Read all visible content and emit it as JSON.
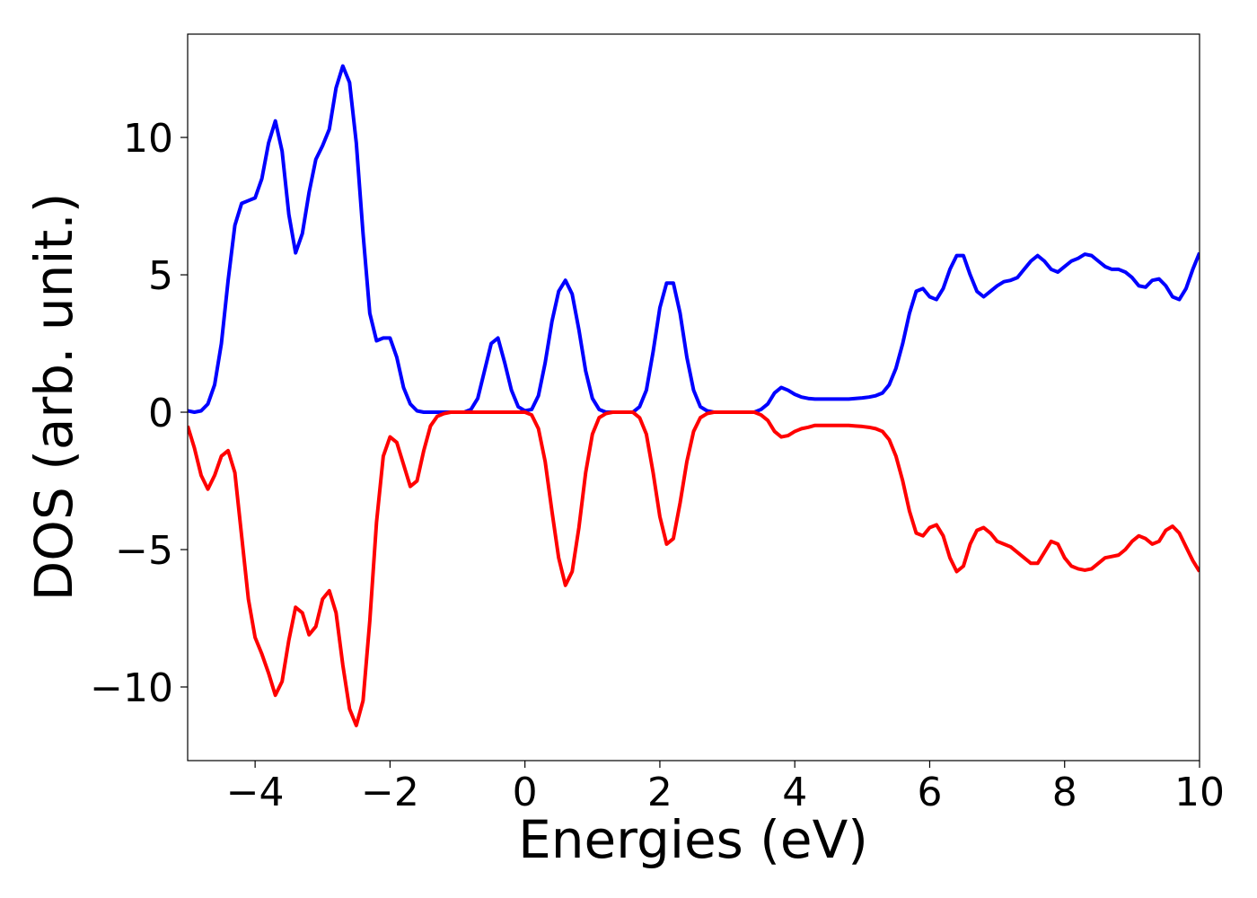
{
  "chart_data": {
    "type": "line",
    "xlabel": "Energies (eV)",
    "ylabel": "DOS (arb. unit.)",
    "x": [
      -5,
      -4.9,
      -4.8,
      -4.7,
      -4.6,
      -4.5,
      -4.4,
      -4.3,
      -4.2,
      -4.1,
      -4,
      -3.9,
      -3.8,
      -3.7,
      -3.6,
      -3.5,
      -3.4,
      -3.3,
      -3.2,
      -3.1,
      -3,
      -2.9,
      -2.8,
      -2.7,
      -2.6,
      -2.5,
      -2.4,
      -2.3,
      -2.2,
      -2.1,
      -2,
      -1.9,
      -1.8,
      -1.7,
      -1.6,
      -1.5,
      -1.4,
      -1.3,
      -1.2,
      -1.1,
      -1,
      -0.9,
      -0.8,
      -0.7,
      -0.6,
      -0.5,
      -0.4,
      -0.3,
      -0.2,
      -0.1,
      0,
      0.1,
      0.2,
      0.3,
      0.4,
      0.5,
      0.6,
      0.7,
      0.8,
      0.9,
      1,
      1.1,
      1.2,
      1.3,
      1.4,
      1.5,
      1.6,
      1.7,
      1.8,
      1.9,
      2,
      2.1,
      2.2,
      2.3,
      2.4,
      2.5,
      2.6,
      2.7,
      2.8,
      2.9,
      3,
      3.1,
      3.2,
      3.3,
      3.4,
      3.5,
      3.6,
      3.7,
      3.8,
      3.9,
      4,
      4.1,
      4.2,
      4.3,
      4.4,
      4.5,
      4.6,
      4.7,
      4.8,
      4.9,
      5,
      5.1,
      5.2,
      5.3,
      5.4,
      5.5,
      5.6,
      5.7,
      5.8,
      5.9,
      6,
      6.1,
      6.2,
      6.3,
      6.4,
      6.5,
      6.6,
      6.7,
      6.8,
      6.9,
      7,
      7.1,
      7.2,
      7.3,
      7.4,
      7.5,
      7.6,
      7.7,
      7.8,
      7.9,
      8,
      8.1,
      8.2,
      8.3,
      8.4,
      8.5,
      8.6,
      8.7,
      8.8,
      8.9,
      9,
      9.1,
      9.2,
      9.3,
      9.4,
      9.5,
      9.6,
      9.7,
      9.8,
      9.9,
      10
    ],
    "series": [
      {
        "color": "#0000ff",
        "values": [
          0.05,
          0,
          0.05,
          0.3,
          1,
          2.5,
          4.8,
          6.8,
          7.6,
          7.7,
          7.8,
          8.5,
          9.8,
          10.6,
          9.5,
          7.2,
          5.8,
          6.5,
          8,
          9.2,
          9.7,
          10.3,
          11.8,
          12.6,
          12,
          9.8,
          6.5,
          3.6,
          2.6,
          2.7,
          2.7,
          2,
          0.9,
          0.3,
          0.05,
          0,
          0,
          0,
          0,
          0,
          0,
          0,
          0.1,
          0.5,
          1.5,
          2.5,
          2.7,
          1.8,
          0.8,
          0.2,
          0.05,
          0.1,
          0.6,
          1.8,
          3.3,
          4.4,
          4.8,
          4.3,
          3,
          1.5,
          0.5,
          0.1,
          0,
          0,
          0,
          0,
          0,
          0.2,
          0.8,
          2.2,
          3.8,
          4.7,
          4.7,
          3.6,
          2,
          0.8,
          0.2,
          0.05,
          0,
          0,
          0,
          0,
          0,
          0,
          0,
          0.1,
          0.3,
          0.7,
          0.9,
          0.8,
          0.65,
          0.55,
          0.5,
          0.48,
          0.48,
          0.48,
          0.48,
          0.48,
          0.48,
          0.5,
          0.52,
          0.55,
          0.6,
          0.7,
          1,
          1.6,
          2.5,
          3.6,
          4.4,
          4.5,
          4.2,
          4.1,
          4.5,
          5.2,
          5.7,
          5.7,
          5,
          4.4,
          4.2,
          4.4,
          4.6,
          4.75,
          4.8,
          4.9,
          5.2,
          5.5,
          5.7,
          5.5,
          5.2,
          5.1,
          5.3,
          5.5,
          5.6,
          5.75,
          5.7,
          5.5,
          5.3,
          5.2,
          5.2,
          5.1,
          4.9,
          4.6,
          4.55,
          4.8,
          4.85,
          4.6,
          4.2,
          4.1,
          4.5,
          5.2,
          5.8
        ]
      },
      {
        "color": "#ff0000",
        "values": [
          -0.5,
          -1.3,
          -2.3,
          -2.8,
          -2.3,
          -1.6,
          -1.4,
          -2.2,
          -4.5,
          -6.8,
          -8.2,
          -8.8,
          -9.5,
          -10.3,
          -9.8,
          -8.3,
          -7.1,
          -7.3,
          -8.1,
          -7.8,
          -6.8,
          -6.5,
          -7.3,
          -9.2,
          -10.8,
          -11.4,
          -10.5,
          -7.6,
          -4,
          -1.6,
          -0.9,
          -1.1,
          -1.9,
          -2.7,
          -2.5,
          -1.4,
          -0.5,
          -0.15,
          -0.05,
          0,
          0,
          0,
          0,
          0,
          0,
          0,
          0,
          0,
          0,
          0,
          0,
          -0.1,
          -0.6,
          -1.8,
          -3.6,
          -5.3,
          -6.3,
          -5.8,
          -4.2,
          -2.2,
          -0.8,
          -0.2,
          -0.05,
          0,
          0,
          0,
          0,
          -0.2,
          -0.8,
          -2.2,
          -3.8,
          -4.8,
          -4.6,
          -3.3,
          -1.8,
          -0.7,
          -0.2,
          -0.05,
          0,
          0,
          0,
          0,
          0,
          0,
          0,
          -0.1,
          -0.3,
          -0.7,
          -0.9,
          -0.85,
          -0.7,
          -0.6,
          -0.55,
          -0.48,
          -0.48,
          -0.48,
          -0.48,
          -0.48,
          -0.48,
          -0.5,
          -0.52,
          -0.55,
          -0.6,
          -0.7,
          -1,
          -1.6,
          -2.5,
          -3.6,
          -4.4,
          -4.5,
          -4.2,
          -4.1,
          -4.5,
          -5.3,
          -5.8,
          -5.6,
          -4.8,
          -4.3,
          -4.2,
          -4.4,
          -4.7,
          -4.8,
          -4.9,
          -5.1,
          -5.3,
          -5.5,
          -5.5,
          -5.1,
          -4.7,
          -4.8,
          -5.3,
          -5.6,
          -5.7,
          -5.75,
          -5.7,
          -5.5,
          -5.3,
          -5.25,
          -5.2,
          -5,
          -4.7,
          -4.5,
          -4.6,
          -4.8,
          -4.7,
          -4.3,
          -4.15,
          -4.4,
          -4.9,
          -5.4,
          -5.8
        ]
      }
    ],
    "xlim": [
      -5,
      10
    ],
    "xticks": [
      {
        "value": -4,
        "label": "−4"
      },
      {
        "value": -2,
        "label": "−2"
      },
      0,
      2,
      4,
      6,
      8,
      10
    ],
    "ylim": [
      -12.68,
      13.76
    ],
    "yticks": [
      {
        "value": -10,
        "label": "−10"
      },
      {
        "value": -5,
        "label": "−5"
      },
      0,
      5,
      10
    ],
    "grid": false
  }
}
